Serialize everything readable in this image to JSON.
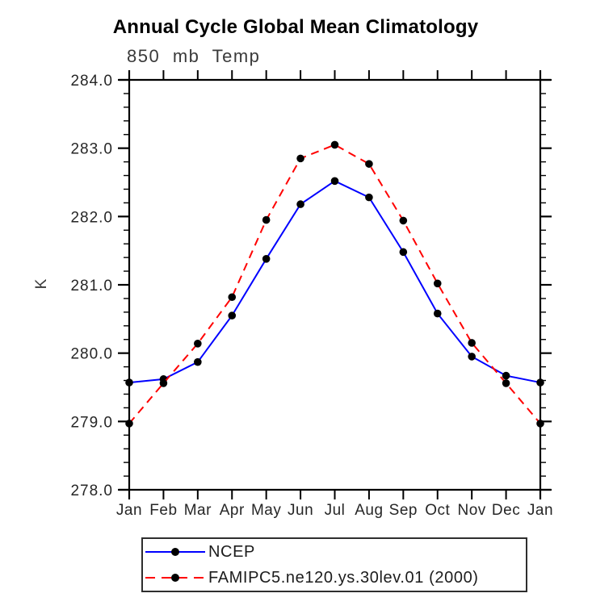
{
  "page": {
    "background": "#ffffff"
  },
  "chart_data": {
    "type": "line",
    "title": "Annual Cycle Global Mean Climatology",
    "subtitle": "850 mb Temp",
    "ylabel": "K",
    "ylim": [
      278.0,
      284.0
    ],
    "ytick_step": 1.0,
    "ytick_minor_step": 0.2,
    "ytick_labels": [
      "278.0",
      "279.0",
      "280.0",
      "281.0",
      "282.0",
      "283.0",
      "284.0"
    ],
    "x_categories": [
      "Jan",
      "Feb",
      "Mar",
      "Apr",
      "May",
      "Jun",
      "Jul",
      "Aug",
      "Sep",
      "Oct",
      "Nov",
      "Dec",
      "Jan"
    ],
    "grid": false,
    "legend_position": "bottom-left",
    "axis_color": "#000000",
    "tick_label_color": "#262626",
    "series": [
      {
        "name": "NCEP",
        "line_color": "#0000ff",
        "line_style": "solid",
        "marker": "filled-circle",
        "marker_color": "#000000",
        "values": [
          279.57,
          279.62,
          279.87,
          280.55,
          281.38,
          282.18,
          282.52,
          282.28,
          281.48,
          280.58,
          279.95,
          279.67,
          279.57
        ]
      },
      {
        "name": "FAMIPC5.ne120.ys.30lev.01 (2000)",
        "line_color": "#ff0000",
        "line_style": "dashed",
        "marker": "filled-circle",
        "marker_color": "#000000",
        "values": [
          278.97,
          279.56,
          280.14,
          280.82,
          281.95,
          282.85,
          283.05,
          282.77,
          281.94,
          281.02,
          280.15,
          279.56,
          278.97
        ]
      }
    ]
  }
}
